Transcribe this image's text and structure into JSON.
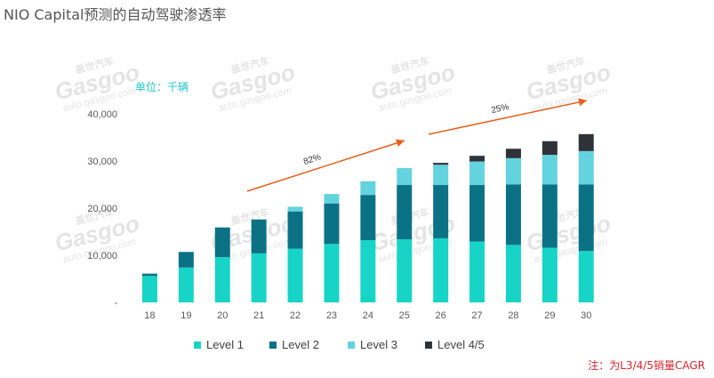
{
  "title": "NIO Capital预测的自动驾驶渗透率",
  "unit_label": "单位：千辆",
  "note": "注：为L3/4/5销量CAGR",
  "watermark": {
    "brand_cn": "盖世汽车",
    "brand": "Gasgoo",
    "url": "auto.gasgoo.com"
  },
  "colors": {
    "level1": "#17d4c6",
    "level2": "#0b7285",
    "level3": "#63d3de",
    "level45": "#2f3337",
    "arrow": "#e8601c"
  },
  "chart_data": {
    "type": "bar",
    "stacked": true,
    "categories": [
      "18",
      "19",
      "20",
      "21",
      "22",
      "23",
      "24",
      "25",
      "26",
      "27",
      "28",
      "29",
      "30"
    ],
    "series": [
      {
        "name": "Level 1",
        "color": "#17d4c6",
        "values": [
          5600,
          7400,
          9600,
          10400,
          11400,
          12400,
          13200,
          13400,
          13600,
          12900,
          12200,
          11600,
          10900
        ]
      },
      {
        "name": "Level 2",
        "color": "#0b7285",
        "values": [
          500,
          3300,
          6300,
          7200,
          7900,
          8600,
          9600,
          11500,
          11300,
          12000,
          12800,
          13400,
          14100
        ]
      },
      {
        "name": "Level 3",
        "color": "#63d3de",
        "values": [
          0,
          0,
          0,
          0,
          1000,
          2000,
          2900,
          3600,
          4300,
          5000,
          5600,
          6300,
          7100
        ]
      },
      {
        "name": "Level 4/5",
        "color": "#2f3337",
        "values": [
          0,
          0,
          0,
          0,
          0,
          0,
          0,
          0,
          400,
          1200,
          2000,
          2900,
          3600
        ]
      }
    ],
    "y_ticks": [
      "-",
      "10,000",
      "20,000",
      "30,000",
      "40,000"
    ],
    "ylim": [
      0,
      40000
    ],
    "legend_position": "bottom",
    "annotations": [
      {
        "label": "82%",
        "from": "21",
        "to": "25"
      },
      {
        "label": "25%",
        "from": "26",
        "to": "30"
      }
    ]
  }
}
